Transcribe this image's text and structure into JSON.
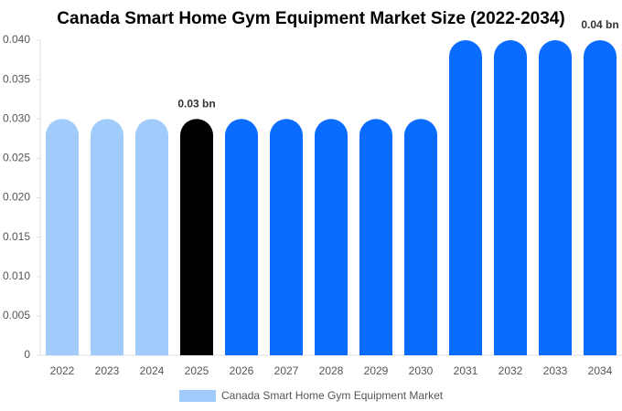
{
  "chart_data": {
    "type": "bar",
    "title": "Canada Smart Home Gym Equipment Market Size (2022-2034)",
    "categories": [
      "2022",
      "2023",
      "2024",
      "2025",
      "2026",
      "2027",
      "2028",
      "2029",
      "2030",
      "2031",
      "2032",
      "2033",
      "2034"
    ],
    "series": [
      {
        "name": "Canada Smart Home Gym Equipment Market",
        "color": "#a0cbfa",
        "values": [
          0.03,
          0.03,
          0.03,
          0.03,
          0.03,
          0.03,
          0.03,
          0.03,
          0.03,
          0.04,
          0.04,
          0.04,
          0.04
        ],
        "colors": [
          "#a0cbfa",
          "#a0cbfa",
          "#a0cbfa",
          "#000000",
          "#0a6cff",
          "#0a6cff",
          "#0a6cff",
          "#0a6cff",
          "#0a6cff",
          "#0a6cff",
          "#0a6cff",
          "#0a6cff",
          "#0a6cff"
        ],
        "value_labels": [
          null,
          null,
          null,
          "0.03 bn",
          null,
          null,
          null,
          null,
          null,
          null,
          null,
          null,
          "0.04 bn"
        ]
      }
    ],
    "ylim": [
      0,
      0.04
    ],
    "yticks": [
      0,
      0.005,
      {
        "value": 0.01,
        "label": "0.010"
      },
      0.015,
      {
        "value": 0.02,
        "label": "0.020"
      },
      0.025,
      {
        "value": 0.03,
        "label": "0.030"
      },
      0.035,
      {
        "value": 0.04,
        "label": "0.040"
      }
    ],
    "grid": false,
    "legend": "bottom"
  }
}
